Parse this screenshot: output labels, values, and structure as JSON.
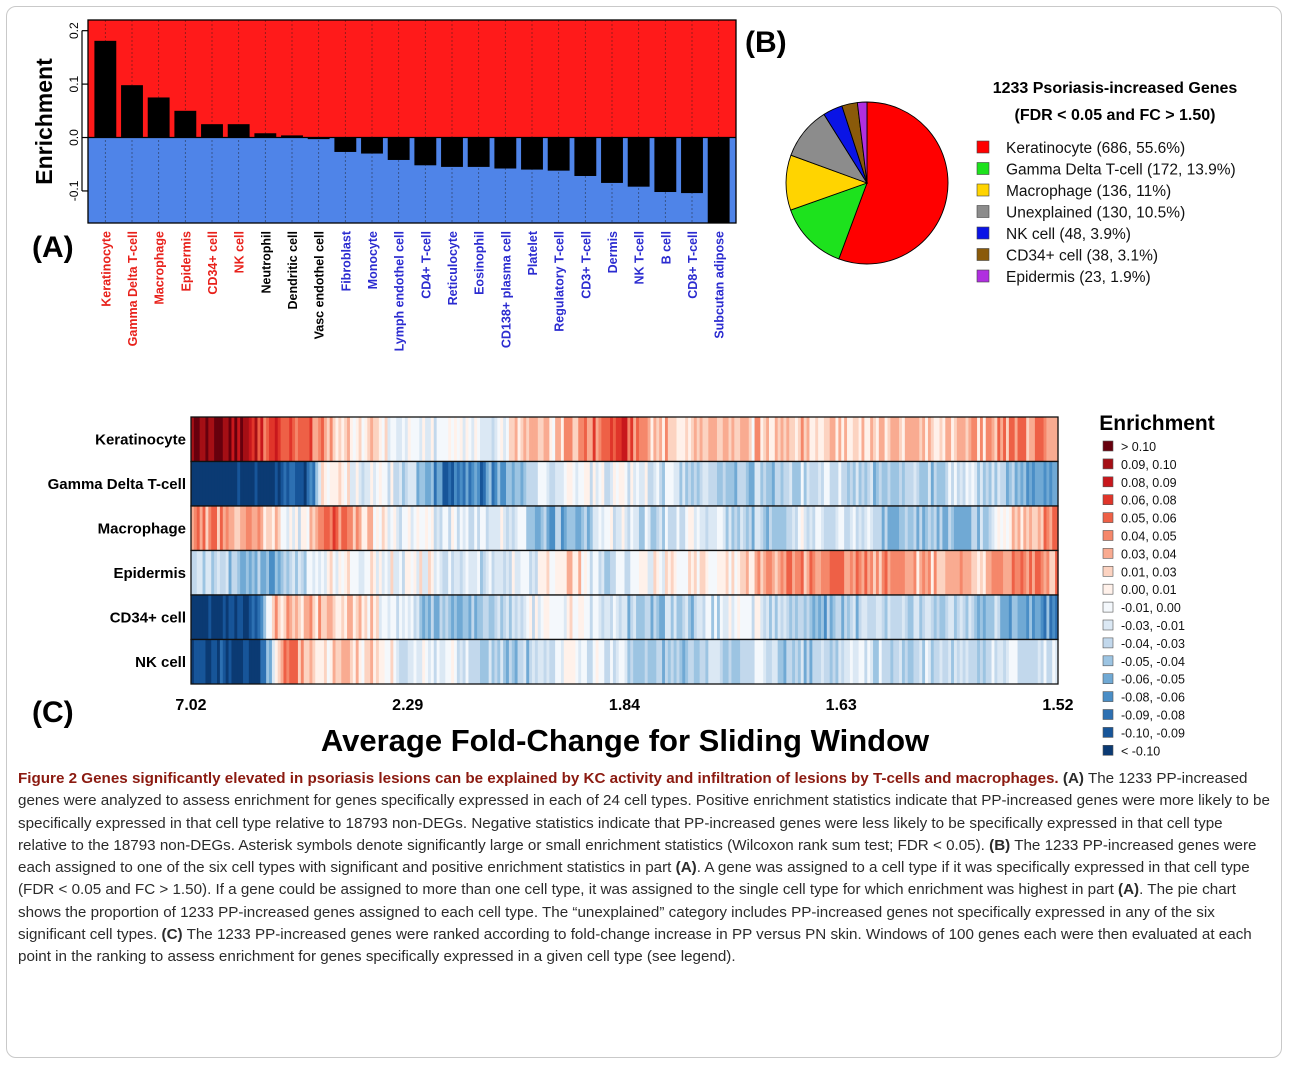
{
  "panels": {
    "a": "(A)",
    "b": "(B)",
    "c": "(C)"
  },
  "chart_data": [
    {
      "type": "bar",
      "ylabel": "Enrichment",
      "ylim": [
        -0.16,
        0.22
      ],
      "yticks": [
        -0.1,
        0.0,
        0.1,
        0.2
      ],
      "ytick_labels": [
        "-0.1",
        "0.0",
        "0.1",
        "0.2"
      ],
      "categories": [
        "Keratinocyte",
        "Gamma Delta T-cell",
        "Macrophage",
        "Epidermis",
        "CD34+ cell",
        "NK cell",
        "Neutrophil",
        "Dendritic cell",
        "Vasc endothel cell",
        "Fibroblast",
        "Monocyte",
        "Lymph endothel cell",
        "CD4+ T-cell",
        "Reticulocyte",
        "Eosinophil",
        "CD138+ plasma cell",
        "Platelet",
        "Regulatory T-cell",
        "CD3+ T-cell",
        "Dermis",
        "NK T-cell",
        "B cell",
        "CD8+ T-cell",
        "Subcutan adipose"
      ],
      "values": [
        0.181,
        0.098,
        0.075,
        0.05,
        0.025,
        0.025,
        0.008,
        0.004,
        -0.003,
        -0.027,
        -0.03,
        -0.042,
        -0.052,
        -0.055,
        -0.055,
        -0.058,
        -0.06,
        -0.062,
        -0.072,
        -0.085,
        -0.092,
        -0.102,
        -0.104,
        -0.16
      ],
      "significance": [
        "**",
        "**",
        "**",
        "**",
        "**",
        "**",
        "",
        "",
        "",
        "**",
        "**",
        "**",
        "**",
        "**",
        "**",
        "**",
        "**",
        "**",
        "**",
        "**",
        "**",
        "**",
        "**",
        "**"
      ],
      "label_colors": [
        "#e8211b",
        "#e8211b",
        "#e8211b",
        "#e8211b",
        "#e8211b",
        "#e8211b",
        "#000000",
        "#000000",
        "#000000",
        "#2b2bd0",
        "#2b2bd0",
        "#2b2bd0",
        "#2b2bd0",
        "#2b2bd0",
        "#2b2bd0",
        "#2b2bd0",
        "#2b2bd0",
        "#2b2bd0",
        "#2b2bd0",
        "#2b2bd0",
        "#2b2bd0",
        "#2b2bd0",
        "#2b2bd0",
        "#2b2bd0"
      ],
      "bg_positive": "#ff1a1a",
      "bg_negative": "#4f84e8",
      "bar_color": "#000000"
    },
    {
      "type": "pie",
      "title": "1233 Psoriasis-increased Genes",
      "subtitle": "(FDR < 0.05 and FC > 1.50)",
      "slices": [
        {
          "name": "Keratinocyte",
          "count": 686,
          "percent": 55.6,
          "label": "Keratinocyte (686, 55.6%)",
          "color": "#ff0000"
        },
        {
          "name": "Gamma Delta T-cell",
          "count": 172,
          "percent": 13.9,
          "label": "Gamma Delta T-cell (172, 13.9%)",
          "color": "#1de21d"
        },
        {
          "name": "Macrophage",
          "count": 136,
          "percent": 11.0,
          "label": "Macrophage (136, 11%)",
          "color": "#ffd400"
        },
        {
          "name": "Unexplained",
          "count": 130,
          "percent": 10.5,
          "label": "Unexplained (130, 10.5%)",
          "color": "#8c8c8c"
        },
        {
          "name": "NK cell",
          "count": 48,
          "percent": 3.9,
          "label": "NK cell (48, 3.9%)",
          "color": "#0a14e6"
        },
        {
          "name": "CD34+ cell",
          "count": 38,
          "percent": 3.1,
          "label": "CD34+ cell (38, 3.1%)",
          "color": "#8a5a0a"
        },
        {
          "name": "Epidermis",
          "count": 23,
          "percent": 1.9,
          "label": "Epidermis (23, 1.9%)",
          "color": "#b02ee0"
        }
      ]
    },
    {
      "type": "heatmap",
      "rows": [
        "Keratinocyte",
        "Gamma Delta T-cell",
        "Macrophage",
        "Epidermis",
        "CD34+ cell",
        "NK cell"
      ],
      "xlabel": "Average Fold-Change for Sliding Window",
      "xticks": [
        {
          "pos": 0.0,
          "label": "7.02"
        },
        {
          "pos": 0.25,
          "label": "2.29"
        },
        {
          "pos": 0.5,
          "label": "1.84"
        },
        {
          "pos": 0.75,
          "label": "1.63"
        },
        {
          "pos": 1.0,
          "label": "1.52"
        }
      ],
      "legend_title": "Enrichment",
      "legend": [
        {
          "label": "> 0.10",
          "color": "#67000d"
        },
        {
          "label": "0.09, 0.10",
          "color": "#a50f15"
        },
        {
          "label": "0.08, 0.09",
          "color": "#c8171c"
        },
        {
          "label": "0.06, 0.08",
          "color": "#e0352a"
        },
        {
          "label": "0.05, 0.06",
          "color": "#ee6046"
        },
        {
          "label": "0.04, 0.05",
          "color": "#f5876a"
        },
        {
          "label": "0.03, 0.04",
          "color": "#f9ab91"
        },
        {
          "label": "0.01, 0.03",
          "color": "#fcd3c1"
        },
        {
          "label": "0.00, 0.01",
          "color": "#fff1ea"
        },
        {
          "label": "-0.01, 0.00",
          "color": "#f4f8fc"
        },
        {
          "label": "-0.03, -0.01",
          "color": "#dbe8f4"
        },
        {
          "label": "-0.04, -0.03",
          "color": "#c2d8ec"
        },
        {
          "label": "-0.05, -0.04",
          "color": "#9cc4e2"
        },
        {
          "label": "-0.06, -0.05",
          "color": "#70a9d4"
        },
        {
          "label": "-0.08, -0.06",
          "color": "#4a8ec6"
        },
        {
          "label": "-0.09, -0.08",
          "color": "#2d70b2"
        },
        {
          "label": "-0.10, -0.09",
          "color": "#175599"
        },
        {
          "label": "< -0.10",
          "color": "#0b3a73"
        }
      ],
      "profiles": [
        [
          [
            0.0,
            17
          ],
          [
            0.04,
            17
          ],
          [
            0.08,
            14
          ],
          [
            0.15,
            12
          ],
          [
            0.18,
            9
          ],
          [
            0.2,
            10
          ],
          [
            0.24,
            8
          ],
          [
            0.3,
            8
          ],
          [
            0.34,
            7
          ],
          [
            0.38,
            10
          ],
          [
            0.42,
            10
          ],
          [
            0.44,
            11
          ],
          [
            0.5,
            14
          ],
          [
            0.52,
            11
          ],
          [
            0.56,
            10
          ],
          [
            0.64,
            10
          ],
          [
            0.72,
            10
          ],
          [
            0.8,
            10
          ],
          [
            0.88,
            10
          ],
          [
            0.95,
            12
          ],
          [
            1.0,
            12
          ]
        ],
        [
          [
            0.0,
            0
          ],
          [
            0.1,
            0
          ],
          [
            0.14,
            2
          ],
          [
            0.15,
            9
          ],
          [
            0.2,
            8
          ],
          [
            0.24,
            7
          ],
          [
            0.3,
            2
          ],
          [
            0.34,
            3
          ],
          [
            0.38,
            5
          ],
          [
            0.42,
            8
          ],
          [
            0.5,
            8
          ],
          [
            0.54,
            7
          ],
          [
            0.6,
            6
          ],
          [
            0.66,
            5
          ],
          [
            0.72,
            7
          ],
          [
            0.82,
            5
          ],
          [
            0.9,
            7
          ],
          [
            0.96,
            4
          ],
          [
            1.0,
            4
          ]
        ],
        [
          [
            0.0,
            12
          ],
          [
            0.08,
            11
          ],
          [
            0.12,
            7
          ],
          [
            0.16,
            13
          ],
          [
            0.2,
            10
          ],
          [
            0.24,
            8
          ],
          [
            0.32,
            7
          ],
          [
            0.36,
            8
          ],
          [
            0.4,
            5
          ],
          [
            0.44,
            4
          ],
          [
            0.48,
            8
          ],
          [
            0.54,
            6
          ],
          [
            0.58,
            8
          ],
          [
            0.66,
            5
          ],
          [
            0.7,
            7
          ],
          [
            0.76,
            7
          ],
          [
            0.82,
            5
          ],
          [
            0.9,
            5
          ],
          [
            0.96,
            11
          ],
          [
            1.0,
            12
          ]
        ],
        [
          [
            0.0,
            7
          ],
          [
            0.06,
            5
          ],
          [
            0.1,
            4
          ],
          [
            0.14,
            7
          ],
          [
            0.18,
            9
          ],
          [
            0.22,
            8
          ],
          [
            0.28,
            8
          ],
          [
            0.3,
            6
          ],
          [
            0.36,
            7
          ],
          [
            0.4,
            8
          ],
          [
            0.44,
            10
          ],
          [
            0.48,
            6
          ],
          [
            0.52,
            8
          ],
          [
            0.58,
            9
          ],
          [
            0.62,
            9
          ],
          [
            0.7,
            12
          ],
          [
            0.76,
            12
          ],
          [
            0.82,
            11
          ],
          [
            0.9,
            10
          ],
          [
            0.96,
            12
          ],
          [
            1.0,
            11
          ]
        ],
        [
          [
            0.0,
            0
          ],
          [
            0.07,
            0
          ],
          [
            0.1,
            11
          ],
          [
            0.16,
            10
          ],
          [
            0.2,
            10
          ],
          [
            0.24,
            7
          ],
          [
            0.28,
            5
          ],
          [
            0.32,
            4
          ],
          [
            0.38,
            7
          ],
          [
            0.42,
            9
          ],
          [
            0.48,
            7
          ],
          [
            0.52,
            5
          ],
          [
            0.58,
            6
          ],
          [
            0.64,
            8
          ],
          [
            0.68,
            6
          ],
          [
            0.72,
            4
          ],
          [
            0.8,
            6
          ],
          [
            0.9,
            6
          ],
          [
            0.96,
            4
          ],
          [
            1.0,
            3
          ]
        ],
        [
          [
            0.0,
            0
          ],
          [
            0.08,
            0
          ],
          [
            0.11,
            13
          ],
          [
            0.15,
            9
          ],
          [
            0.18,
            10
          ],
          [
            0.22,
            9
          ],
          [
            0.26,
            7
          ],
          [
            0.3,
            8
          ],
          [
            0.34,
            6
          ],
          [
            0.38,
            5
          ],
          [
            0.44,
            8
          ],
          [
            0.5,
            7
          ],
          [
            0.54,
            5
          ],
          [
            0.6,
            6
          ],
          [
            0.66,
            7
          ],
          [
            0.7,
            5
          ],
          [
            0.76,
            7
          ],
          [
            0.84,
            6
          ],
          [
            0.92,
            7
          ],
          [
            1.0,
            7
          ]
        ]
      ]
    }
  ],
  "caption": {
    "title": "Figure 2 Genes significantly elevated in psoriasis lesions can be explained by KC activity and infiltration of lesions by T-cells and macrophages.",
    "a_ref": "(A)",
    "a_text": "The 1233 PP-increased genes were analyzed to assess enrichment for genes specifically expressed in each of 24 cell types. Positive enrichment statistics indicate that PP-increased genes were more likely to be specifically expressed in that cell type relative to 18793 non-DEGs. Negative statistics indicate that PP-increased genes were less likely to be specifically expressed in that cell type relative to the 18793 non-DEGs. Asterisk symbols denote significantly large or small enrichment statistics (Wilcoxon rank sum test; FDR < 0.05).",
    "b_ref": "(B)",
    "b_text_1": "The 1233 PP-increased genes were each assigned to one of the six cell types with significant and positive enrichment statistics in part",
    "b_ref_2": "(A)",
    "b_text_2": ". A gene was assigned to a cell type if it was specifically expressed in that cell type (FDR < 0.05 and FC > 1.50). If a gene could be assigned to more than one cell type, it was assigned to the single cell type for which enrichment was highest in part",
    "b_ref_3": "(A)",
    "b_text_3": ". The pie chart shows the proportion of 1233 PP-increased genes assigned to each cell type. The “unexplained” category includes PP-increased genes not specifically expressed in any of the six significant cell types.",
    "c_ref": "(C)",
    "c_text": "The 1233 PP-increased genes were ranked according to fold-change increase in PP versus PN skin. Windows of 100 genes each were then evaluated at each point in the ranking to assess enrichment for genes specifically expressed in a given cell type (see legend)."
  }
}
